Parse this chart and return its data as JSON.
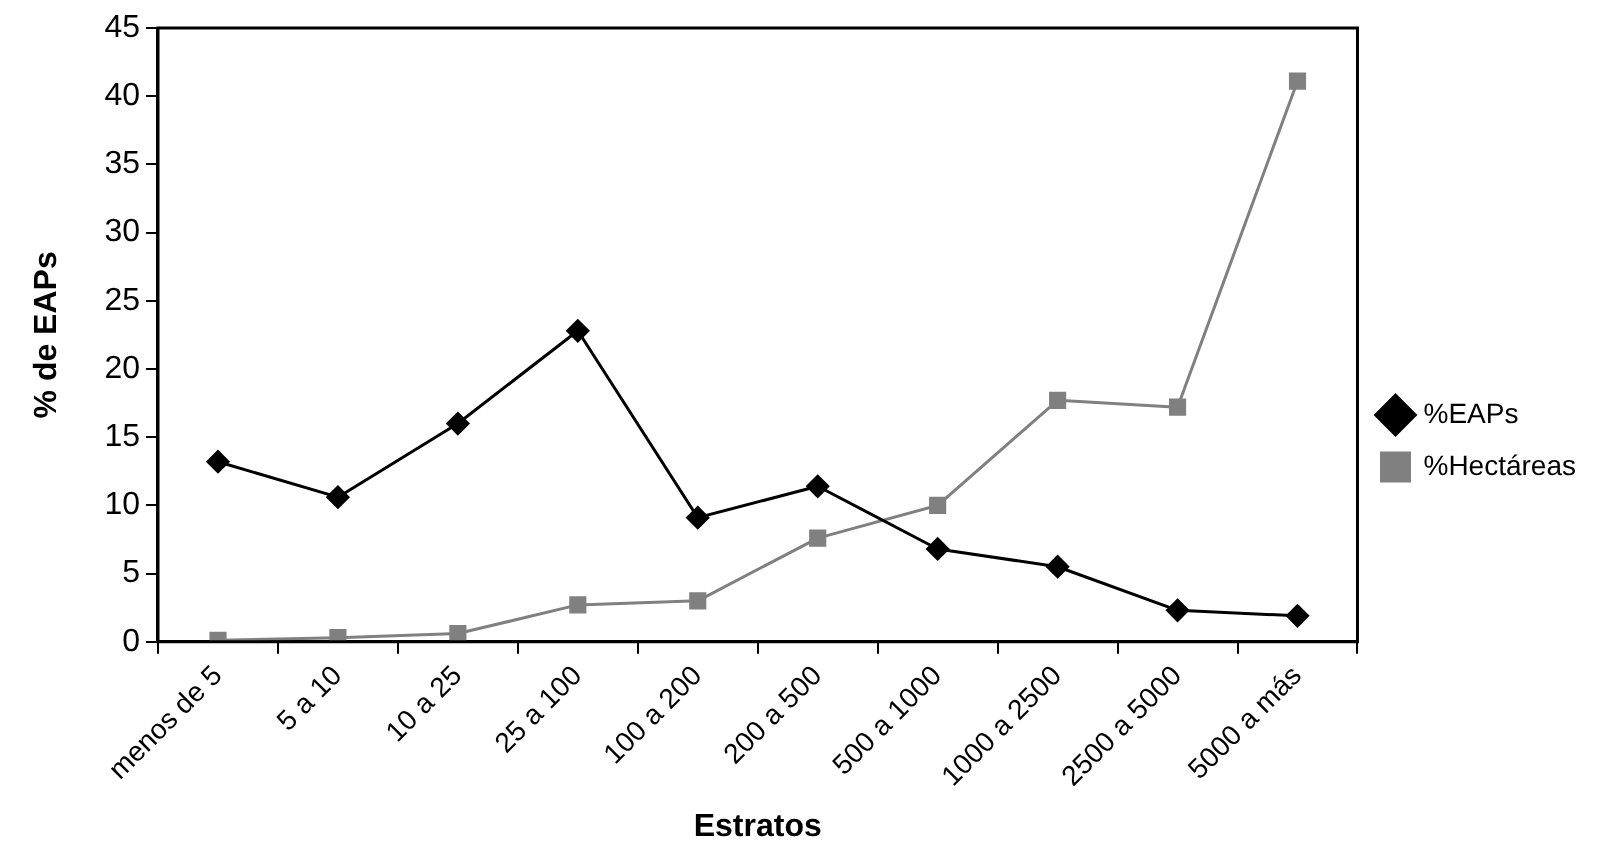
{
  "chart_data": {
    "type": "line",
    "xlabel": "Estratos",
    "ylabel": "% de EAPs",
    "categories": [
      "menos de 5",
      "5 a 10",
      "10 a 25",
      "25 a 100",
      "100 a 200",
      "200 a 500",
      "500 a 1000",
      "1000 a 2500",
      "2500 a 5000",
      "5000 a más"
    ],
    "series": [
      {
        "name": "%EAPs",
        "color": "#000000",
        "marker": "diamond",
        "values": [
          13.2,
          10.6,
          16.0,
          22.8,
          9.1,
          11.4,
          6.8,
          5.5,
          2.3,
          1.9
        ]
      },
      {
        "name": "%Hectáreas",
        "color": "#808080",
        "marker": "square",
        "values": [
          0.1,
          0.3,
          0.6,
          2.7,
          3.0,
          7.6,
          10.0,
          17.7,
          17.2,
          41.1
        ]
      }
    ],
    "ylim": [
      0,
      45
    ],
    "yticks": [
      0,
      5,
      10,
      15,
      20,
      25,
      30,
      35,
      40,
      45
    ],
    "grid": false,
    "legend": "right"
  }
}
